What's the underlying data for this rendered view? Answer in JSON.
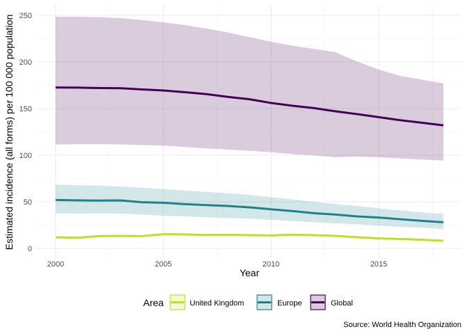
{
  "chart_data": {
    "type": "line",
    "title": "",
    "xlabel": "Year",
    "ylabel": "Estimated incidence (all forms) per 100 000 population",
    "caption": "Source: World Health Organization",
    "xlim": [
      2000,
      2018
    ],
    "ylim": [
      0,
      260
    ],
    "x_ticks": [
      2000,
      2005,
      2010,
      2015
    ],
    "y_ticks": [
      0,
      50,
      100,
      150,
      200,
      250
    ],
    "grid": true,
    "legend": {
      "title": "Area",
      "position": "bottom",
      "entries": [
        "United Kingdom",
        "Europe",
        "Global"
      ]
    },
    "x": [
      2000,
      2001,
      2002,
      2003,
      2004,
      2005,
      2006,
      2007,
      2008,
      2009,
      2010,
      2011,
      2012,
      2013,
      2014,
      2015,
      2016,
      2017,
      2018
    ],
    "series": [
      {
        "name": "Global",
        "color": "#440154",
        "fill": "#d8cadd",
        "values": [
          172.6,
          172.5,
          172.0,
          171.8,
          170.5,
          169.4,
          167.5,
          165.5,
          162.5,
          160.0,
          156.0,
          153.0,
          150.5,
          147.0,
          144.0,
          140.8,
          137.5,
          134.8,
          132.0
        ],
        "upper": [
          248.5,
          248.5,
          248.0,
          247.0,
          245.0,
          242.5,
          239.5,
          235.8,
          231.6,
          226.6,
          221.6,
          217.4,
          214.0,
          210.4,
          200.5,
          191.8,
          185.0,
          181.0,
          177.0
        ],
        "lower": [
          111.4,
          111.8,
          111.8,
          111.6,
          110.8,
          110.2,
          108.8,
          107.2,
          106.0,
          104.7,
          103.2,
          101.0,
          99.8,
          97.8,
          98.5,
          97.8,
          96.5,
          95.3,
          94.2
        ]
      },
      {
        "name": "Europe",
        "color": "#21818a",
        "fill": "#d1e5e7",
        "values": [
          52.0,
          51.6,
          51.3,
          51.5,
          49.5,
          49.0,
          47.5,
          46.5,
          45.5,
          44.0,
          42.0,
          40.0,
          37.8,
          36.3,
          34.3,
          33.1,
          31.3,
          29.6,
          28.1
        ],
        "upper": [
          68.4,
          67.8,
          67.3,
          66.5,
          65.0,
          63.7,
          62.0,
          60.5,
          59.2,
          57.5,
          55.0,
          52.5,
          50.0,
          47.5,
          45.5,
          43.0,
          40.8,
          38.6,
          36.8
        ],
        "lower": [
          37.6,
          37.4,
          37.6,
          37.4,
          36.3,
          35.0,
          34.3,
          33.3,
          32.6,
          31.9,
          30.6,
          29.3,
          28.1,
          26.9,
          25.9,
          24.4,
          23.1,
          22.1,
          20.6
        ]
      },
      {
        "name": "United Kingdom",
        "color": "#bddf26",
        "fill": "#eef7d0",
        "values": [
          11.9,
          11.4,
          13.2,
          13.4,
          13.2,
          15.2,
          15.0,
          14.4,
          14.6,
          14.2,
          13.9,
          14.7,
          14.2,
          13.4,
          11.9,
          10.7,
          10.2,
          9.2,
          8.2
        ]
      }
    ]
  }
}
